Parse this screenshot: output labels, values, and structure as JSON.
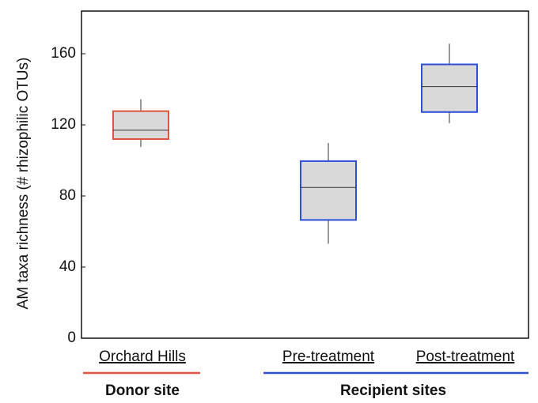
{
  "chart_data": {
    "type": "box",
    "y_label": "AM taxa richness  (# rhizophilic  OTUs)",
    "ylim": [
      0,
      184
    ],
    "yticks": [
      0,
      40,
      80,
      120,
      160
    ],
    "box_fill": "#d9d9d9",
    "groups": [
      {
        "name": "Donor site",
        "color": "#e0553d",
        "categories": [
          "Orchard Hills"
        ],
        "boxes": [
          {
            "whisker_low": 107.6,
            "q1": 112,
            "median": 117,
            "q3": 127.7,
            "whisker_high": 134.4
          }
        ]
      },
      {
        "name": "Recipient sites",
        "color": "#2e4fd8",
        "categories": [
          "Pre-treatment",
          "Post-treatment"
        ],
        "boxes": [
          {
            "whisker_low": 53.1,
            "q1": 66.5,
            "median": 84.8,
            "q3": 99.6,
            "whisker_high": 109.8
          },
          {
            "whisker_low": 121,
            "q1": 127.2,
            "median": 141.5,
            "q3": 154,
            "whisker_high": 165.6
          }
        ]
      }
    ]
  }
}
